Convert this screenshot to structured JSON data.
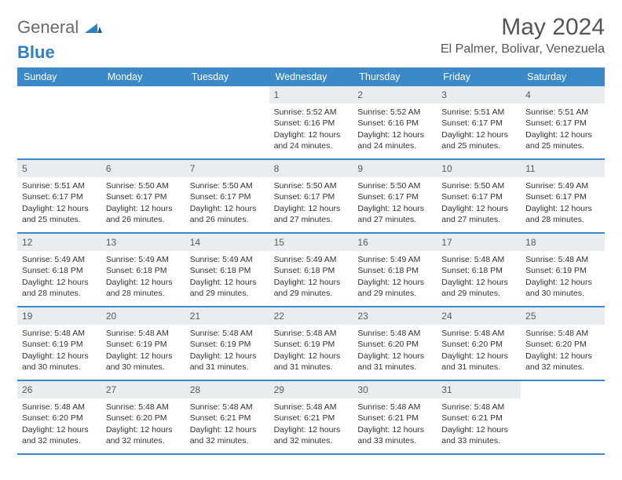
{
  "logo": {
    "general": "General",
    "blue": "Blue"
  },
  "title": "May 2024",
  "location": "El Palmer, Bolivar, Venezuela",
  "day_names": [
    "Sunday",
    "Monday",
    "Tuesday",
    "Wednesday",
    "Thursday",
    "Friday",
    "Saturday"
  ],
  "colors": {
    "header_bg": "#3b89c9",
    "date_bg": "#e9edf0",
    "logo_blue": "#2f7fc1"
  },
  "weeks": [
    [
      {
        "n": "",
        "sr": "",
        "ss": "",
        "dl": ""
      },
      {
        "n": "",
        "sr": "",
        "ss": "",
        "dl": ""
      },
      {
        "n": "",
        "sr": "",
        "ss": "",
        "dl": ""
      },
      {
        "n": "1",
        "sr": "5:52 AM",
        "ss": "6:16 PM",
        "dl": "12 hours and 24 minutes."
      },
      {
        "n": "2",
        "sr": "5:52 AM",
        "ss": "6:16 PM",
        "dl": "12 hours and 24 minutes."
      },
      {
        "n": "3",
        "sr": "5:51 AM",
        "ss": "6:17 PM",
        "dl": "12 hours and 25 minutes."
      },
      {
        "n": "4",
        "sr": "5:51 AM",
        "ss": "6:17 PM",
        "dl": "12 hours and 25 minutes."
      }
    ],
    [
      {
        "n": "5",
        "sr": "5:51 AM",
        "ss": "6:17 PM",
        "dl": "12 hours and 25 minutes."
      },
      {
        "n": "6",
        "sr": "5:50 AM",
        "ss": "6:17 PM",
        "dl": "12 hours and 26 minutes."
      },
      {
        "n": "7",
        "sr": "5:50 AM",
        "ss": "6:17 PM",
        "dl": "12 hours and 26 minutes."
      },
      {
        "n": "8",
        "sr": "5:50 AM",
        "ss": "6:17 PM",
        "dl": "12 hours and 27 minutes."
      },
      {
        "n": "9",
        "sr": "5:50 AM",
        "ss": "6:17 PM",
        "dl": "12 hours and 27 minutes."
      },
      {
        "n": "10",
        "sr": "5:50 AM",
        "ss": "6:17 PM",
        "dl": "12 hours and 27 minutes."
      },
      {
        "n": "11",
        "sr": "5:49 AM",
        "ss": "6:17 PM",
        "dl": "12 hours and 28 minutes."
      }
    ],
    [
      {
        "n": "12",
        "sr": "5:49 AM",
        "ss": "6:18 PM",
        "dl": "12 hours and 28 minutes."
      },
      {
        "n": "13",
        "sr": "5:49 AM",
        "ss": "6:18 PM",
        "dl": "12 hours and 28 minutes."
      },
      {
        "n": "14",
        "sr": "5:49 AM",
        "ss": "6:18 PM",
        "dl": "12 hours and 29 minutes."
      },
      {
        "n": "15",
        "sr": "5:49 AM",
        "ss": "6:18 PM",
        "dl": "12 hours and 29 minutes."
      },
      {
        "n": "16",
        "sr": "5:49 AM",
        "ss": "6:18 PM",
        "dl": "12 hours and 29 minutes."
      },
      {
        "n": "17",
        "sr": "5:48 AM",
        "ss": "6:18 PM",
        "dl": "12 hours and 29 minutes."
      },
      {
        "n": "18",
        "sr": "5:48 AM",
        "ss": "6:19 PM",
        "dl": "12 hours and 30 minutes."
      }
    ],
    [
      {
        "n": "19",
        "sr": "5:48 AM",
        "ss": "6:19 PM",
        "dl": "12 hours and 30 minutes."
      },
      {
        "n": "20",
        "sr": "5:48 AM",
        "ss": "6:19 PM",
        "dl": "12 hours and 30 minutes."
      },
      {
        "n": "21",
        "sr": "5:48 AM",
        "ss": "6:19 PM",
        "dl": "12 hours and 31 minutes."
      },
      {
        "n": "22",
        "sr": "5:48 AM",
        "ss": "6:19 PM",
        "dl": "12 hours and 31 minutes."
      },
      {
        "n": "23",
        "sr": "5:48 AM",
        "ss": "6:20 PM",
        "dl": "12 hours and 31 minutes."
      },
      {
        "n": "24",
        "sr": "5:48 AM",
        "ss": "6:20 PM",
        "dl": "12 hours and 31 minutes."
      },
      {
        "n": "25",
        "sr": "5:48 AM",
        "ss": "6:20 PM",
        "dl": "12 hours and 32 minutes."
      }
    ],
    [
      {
        "n": "26",
        "sr": "5:48 AM",
        "ss": "6:20 PM",
        "dl": "12 hours and 32 minutes."
      },
      {
        "n": "27",
        "sr": "5:48 AM",
        "ss": "6:20 PM",
        "dl": "12 hours and 32 minutes."
      },
      {
        "n": "28",
        "sr": "5:48 AM",
        "ss": "6:21 PM",
        "dl": "12 hours and 32 minutes."
      },
      {
        "n": "29",
        "sr": "5:48 AM",
        "ss": "6:21 PM",
        "dl": "12 hours and 32 minutes."
      },
      {
        "n": "30",
        "sr": "5:48 AM",
        "ss": "6:21 PM",
        "dl": "12 hours and 33 minutes."
      },
      {
        "n": "31",
        "sr": "5:48 AM",
        "ss": "6:21 PM",
        "dl": "12 hours and 33 minutes."
      },
      {
        "n": "",
        "sr": "",
        "ss": "",
        "dl": ""
      }
    ]
  ],
  "labels": {
    "sunrise": "Sunrise: ",
    "sunset": "Sunset: ",
    "daylight": "Daylight: "
  }
}
